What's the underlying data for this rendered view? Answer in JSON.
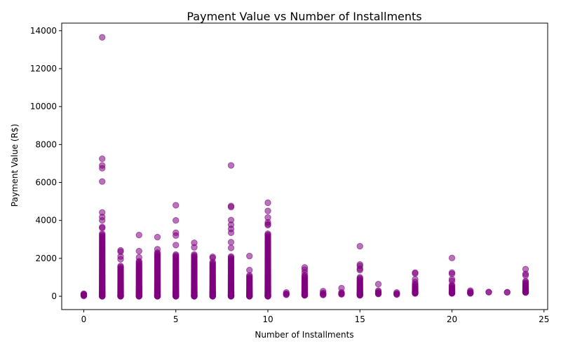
{
  "chart_data": {
    "type": "scatter",
    "title": "Payment Value vs Number of Installments",
    "xlabel": "Number of Installments",
    "ylabel": "Payment Value (R$)",
    "xlim": [
      -1.2,
      25.2
    ],
    "ylim": [
      -700,
      14400
    ],
    "xticks": [
      0,
      5,
      10,
      15,
      20,
      25
    ],
    "yticks": [
      0,
      2000,
      4000,
      6000,
      8000,
      10000,
      12000,
      14000
    ],
    "grid": false,
    "legend": "none",
    "marker_color": "#800080",
    "marker_alpha": 0.55,
    "columns": [
      {
        "x": 0,
        "min": 20,
        "max": 130,
        "outliers": [
          130,
          60
        ]
      },
      {
        "x": 1,
        "min": 0,
        "max": 3300,
        "outliers": [
          13650,
          7250,
          6900,
          6750,
          6050,
          4420,
          4180,
          4000,
          3650,
          3600
        ]
      },
      {
        "x": 2,
        "min": 0,
        "max": 1600,
        "outliers": [
          2420,
          2350,
          2100,
          1950
        ]
      },
      {
        "x": 3,
        "min": 0,
        "max": 1850,
        "outliers": [
          3230,
          2380,
          2050
        ]
      },
      {
        "x": 4,
        "min": 0,
        "max": 2300,
        "outliers": [
          3120,
          2480
        ]
      },
      {
        "x": 5,
        "min": 0,
        "max": 2200,
        "outliers": [
          4800,
          4000,
          3350,
          3200,
          2700
        ]
      },
      {
        "x": 6,
        "min": 0,
        "max": 2200,
        "outliers": [
          2820,
          2580
        ]
      },
      {
        "x": 7,
        "min": 0,
        "max": 1800,
        "outliers": [
          2080,
          2020
        ]
      },
      {
        "x": 8,
        "min": 0,
        "max": 2100,
        "outliers": [
          6900,
          4760,
          4700,
          4020,
          3770,
          3550,
          3350,
          2850,
          2550
        ]
      },
      {
        "x": 9,
        "min": 0,
        "max": 1100,
        "outliers": [
          2120,
          1380
        ]
      },
      {
        "x": 10,
        "min": 0,
        "max": 3300,
        "outliers": [
          4930,
          4500,
          4150,
          3900,
          3800,
          3750
        ]
      },
      {
        "x": 11,
        "min": 80,
        "max": 200,
        "outliers": []
      },
      {
        "x": 12,
        "min": 50,
        "max": 1100,
        "outliers": [
          1520,
          1400,
          1250
        ]
      },
      {
        "x": 13,
        "min": 70,
        "max": 180,
        "outliers": [
          270
        ]
      },
      {
        "x": 14,
        "min": 100,
        "max": 200,
        "outliers": [
          430
        ]
      },
      {
        "x": 15,
        "min": 50,
        "max": 1000,
        "outliers": [
          2640,
          1680,
          1600,
          1450,
          1380
        ]
      },
      {
        "x": 16,
        "min": 120,
        "max": 300,
        "outliers": [
          640
        ]
      },
      {
        "x": 17,
        "min": 90,
        "max": 200,
        "outliers": []
      },
      {
        "x": 18,
        "min": 150,
        "max": 650,
        "outliers": [
          1250,
          1200,
          900,
          750
        ]
      },
      {
        "x": 20,
        "min": 150,
        "max": 600,
        "outliers": [
          2020,
          1250,
          1180,
          900,
          800
        ]
      },
      {
        "x": 21,
        "min": 150,
        "max": 300,
        "outliers": []
      },
      {
        "x": 22,
        "min": 220,
        "max": 220,
        "outliers": []
      },
      {
        "x": 23,
        "min": 210,
        "max": 210,
        "outliers": []
      },
      {
        "x": 24,
        "min": 200,
        "max": 800,
        "outliers": [
          1430,
          1180,
          1100
        ]
      }
    ]
  }
}
